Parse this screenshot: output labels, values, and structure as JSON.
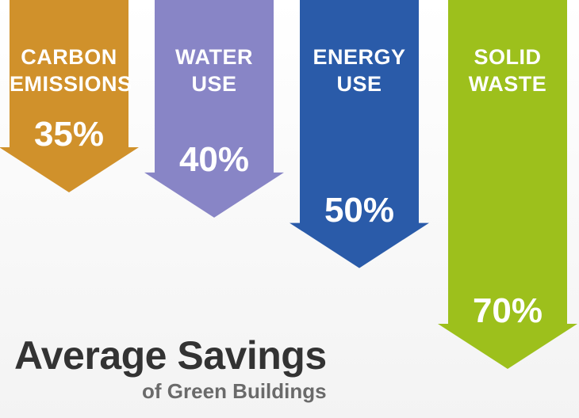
{
  "chart_data": {
    "type": "arrow-bar",
    "title": "Average Savings",
    "subtitle": "of Green Buildings",
    "categories": [
      "CARBON EMISSIONS",
      "WATER USE",
      "ENERGY USE",
      "SOLID WASTE"
    ],
    "values": [
      35,
      40,
      50,
      70
    ],
    "value_labels": [
      "35%",
      "40%",
      "50%",
      "70%"
    ],
    "colors": [
      "#d0912b",
      "#8885c6",
      "#2a5ba9",
      "#9dc01c"
    ]
  }
}
